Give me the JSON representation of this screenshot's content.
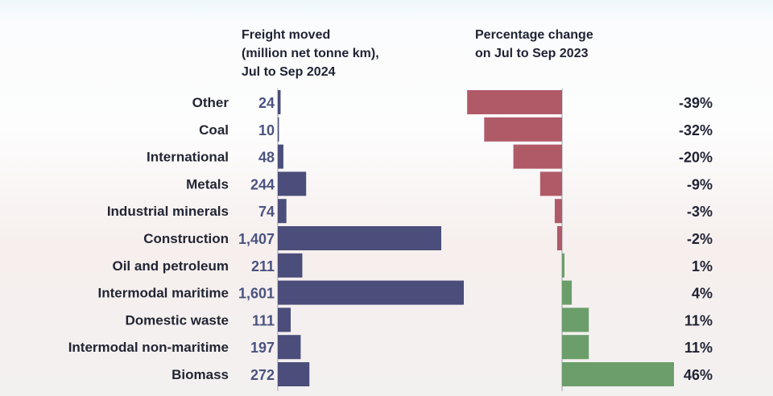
{
  "chart_data": [
    {
      "type": "bar",
      "orientation": "horizontal",
      "title": "Freight moved (million net tonne km), Jul to Sep 2024",
      "title_lines": [
        "Freight moved",
        "(million net tonne km),",
        "Jul to Sep 2024"
      ],
      "categories": [
        "Other",
        "Coal",
        "International",
        "Metals",
        "Industrial minerals",
        "Construction",
        "Oil and petroleum",
        "Intermodal maritime",
        "Domestic waste",
        "Intermodal non-maritime",
        "Biomass"
      ],
      "values": [
        24,
        10,
        48,
        244,
        74,
        1407,
        211,
        1601,
        111,
        197,
        272
      ],
      "value_labels": [
        "24",
        "10",
        "48",
        "244",
        "74",
        "1,407",
        "211",
        "1,601",
        "111",
        "197",
        "272"
      ],
      "xlim": [
        0,
        1601
      ],
      "color": "#4b4e7a"
    },
    {
      "type": "bar",
      "orientation": "horizontal",
      "title": "Percentage change on Jul to Sep 2023",
      "title_lines": [
        "Percentage change",
        "on Jul to Sep 2023"
      ],
      "categories": [
        "Other",
        "Coal",
        "International",
        "Metals",
        "Industrial minerals",
        "Construction",
        "Oil and petroleum",
        "Intermodal maritime",
        "Domestic waste",
        "Intermodal non-maritime",
        "Biomass"
      ],
      "values": [
        -39,
        -32,
        -20,
        -9,
        -3,
        -2,
        1,
        4,
        11,
        11,
        46
      ],
      "value_labels": [
        "-39%",
        "-32%",
        "-20%",
        "-9%",
        "-3%",
        "-2%",
        "1%",
        "4%",
        "11%",
        "11%",
        "46%"
      ],
      "xlim": [
        -46,
        46
      ],
      "negative_color": "#b05a68",
      "positive_color": "#6b9e6a"
    }
  ]
}
